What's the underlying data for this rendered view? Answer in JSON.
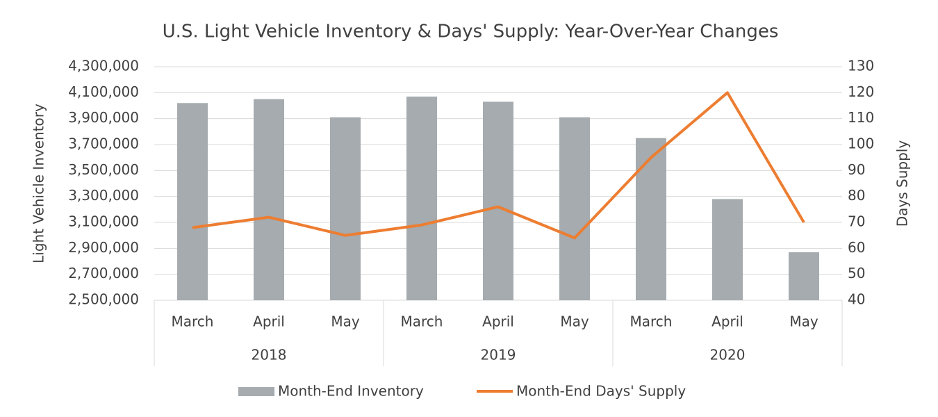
{
  "chart_data": {
    "type": "bar-line",
    "title": "U.S. Light Vehicle Inventory & Days' Supply: Year-Over-Year Changes",
    "ylabel": "Light Vehicle Inventory",
    "y2label": "Days Supply",
    "groups": [
      {
        "name": "2018",
        "categories": [
          "March",
          "April",
          "May"
        ]
      },
      {
        "name": "2019",
        "categories": [
          "March",
          "April",
          "May"
        ]
      },
      {
        "name": "2020",
        "categories": [
          "March",
          "April",
          "May"
        ]
      }
    ],
    "series": [
      {
        "name": "Month-End Inventory",
        "type": "bar",
        "color": "#a5abae",
        "values": [
          4020000,
          4050000,
          3910000,
          4070000,
          4030000,
          3910000,
          3750000,
          3280000,
          2870000
        ]
      },
      {
        "name": "Month-End Days' Supply",
        "type": "line",
        "axis": "y2",
        "color": "#ed7d31",
        "values": [
          68,
          72,
          65,
          69,
          76,
          64,
          95,
          120,
          70
        ]
      }
    ],
    "ylim": [
      2500000,
      4300000
    ],
    "yticks": [
      {
        "value": 2500000,
        "label": "2,500,000"
      },
      {
        "value": 2700000,
        "label": "2,700,000"
      },
      {
        "value": 2900000,
        "label": "2,900,000"
      },
      {
        "value": 3100000,
        "label": "3,100,000"
      },
      {
        "value": 3300000,
        "label": "3,300,000"
      },
      {
        "value": 3500000,
        "label": "3,500,000"
      },
      {
        "value": 3700000,
        "label": "3,700,000"
      },
      {
        "value": 3900000,
        "label": "3,900,000"
      },
      {
        "value": 4100000,
        "label": "4,100,000"
      },
      {
        "value": 4300000,
        "label": "4,300,000"
      }
    ],
    "y2lim": [
      40,
      130
    ],
    "y2ticks": [
      40,
      50,
      60,
      70,
      80,
      90,
      100,
      110,
      120,
      130
    ],
    "grid": true,
    "legend": "bottom"
  }
}
